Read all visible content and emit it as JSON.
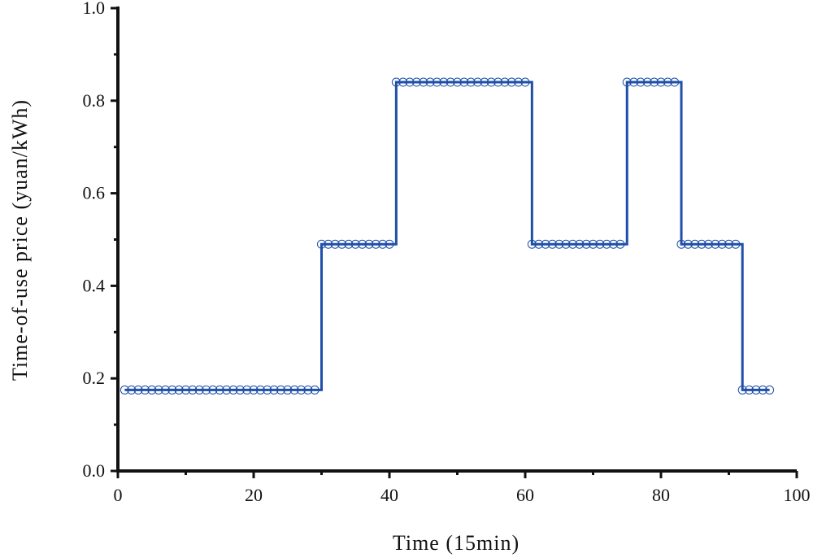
{
  "chart_data": {
    "type": "line",
    "step": true,
    "title": "",
    "xlabel": "Time (15min)",
    "ylabel": "Time-of-use price (yuan/kWh)",
    "xlim": [
      0,
      100
    ],
    "ylim": [
      0.0,
      1.0
    ],
    "xticks": [
      0,
      20,
      40,
      60,
      80,
      100
    ],
    "xtick_labels": [
      "0",
      "20",
      "40",
      "60",
      "80",
      "100"
    ],
    "yticks": [
      0.0,
      0.2,
      0.4,
      0.6,
      0.8,
      1.0
    ],
    "ytick_labels": [
      "0.0",
      "0.2",
      "0.4",
      "0.6",
      "0.8",
      "1.0"
    ],
    "grid": false,
    "legend": "none",
    "line_color": "#1f4fa8",
    "marker": "circle-open",
    "series": [
      {
        "x": [
          1,
          2,
          3,
          4,
          5,
          6,
          7,
          8,
          9,
          10,
          11,
          12,
          13,
          14,
          15,
          16,
          17,
          18,
          19,
          20,
          21,
          22,
          23,
          24,
          25,
          26,
          27,
          28,
          29,
          30,
          31,
          32,
          33,
          34,
          35,
          36,
          37,
          38,
          39,
          40,
          41,
          42,
          43,
          44,
          45,
          46,
          47,
          48,
          49,
          50,
          51,
          52,
          53,
          54,
          55,
          56,
          57,
          58,
          59,
          60,
          61,
          62,
          63,
          64,
          65,
          66,
          67,
          68,
          69,
          70,
          71,
          72,
          73,
          74,
          75,
          76,
          77,
          78,
          79,
          80,
          81,
          82,
          83,
          84,
          85,
          86,
          87,
          88,
          89,
          90,
          91,
          92,
          93,
          94,
          95,
          96
        ],
        "y": [
          0.175,
          0.175,
          0.175,
          0.175,
          0.175,
          0.175,
          0.175,
          0.175,
          0.175,
          0.175,
          0.175,
          0.175,
          0.175,
          0.175,
          0.175,
          0.175,
          0.175,
          0.175,
          0.175,
          0.175,
          0.175,
          0.175,
          0.175,
          0.175,
          0.175,
          0.175,
          0.175,
          0.175,
          0.175,
          0.49,
          0.49,
          0.49,
          0.49,
          0.49,
          0.49,
          0.49,
          0.49,
          0.49,
          0.49,
          0.49,
          0.84,
          0.84,
          0.84,
          0.84,
          0.84,
          0.84,
          0.84,
          0.84,
          0.84,
          0.84,
          0.84,
          0.84,
          0.84,
          0.84,
          0.84,
          0.84,
          0.84,
          0.84,
          0.84,
          0.84,
          0.49,
          0.49,
          0.49,
          0.49,
          0.49,
          0.49,
          0.49,
          0.49,
          0.49,
          0.49,
          0.49,
          0.49,
          0.49,
          0.49,
          0.84,
          0.84,
          0.84,
          0.84,
          0.84,
          0.84,
          0.84,
          0.84,
          0.49,
          0.49,
          0.49,
          0.49,
          0.49,
          0.49,
          0.49,
          0.49,
          0.49,
          0.175,
          0.175,
          0.175,
          0.175,
          0.175
        ]
      }
    ]
  }
}
